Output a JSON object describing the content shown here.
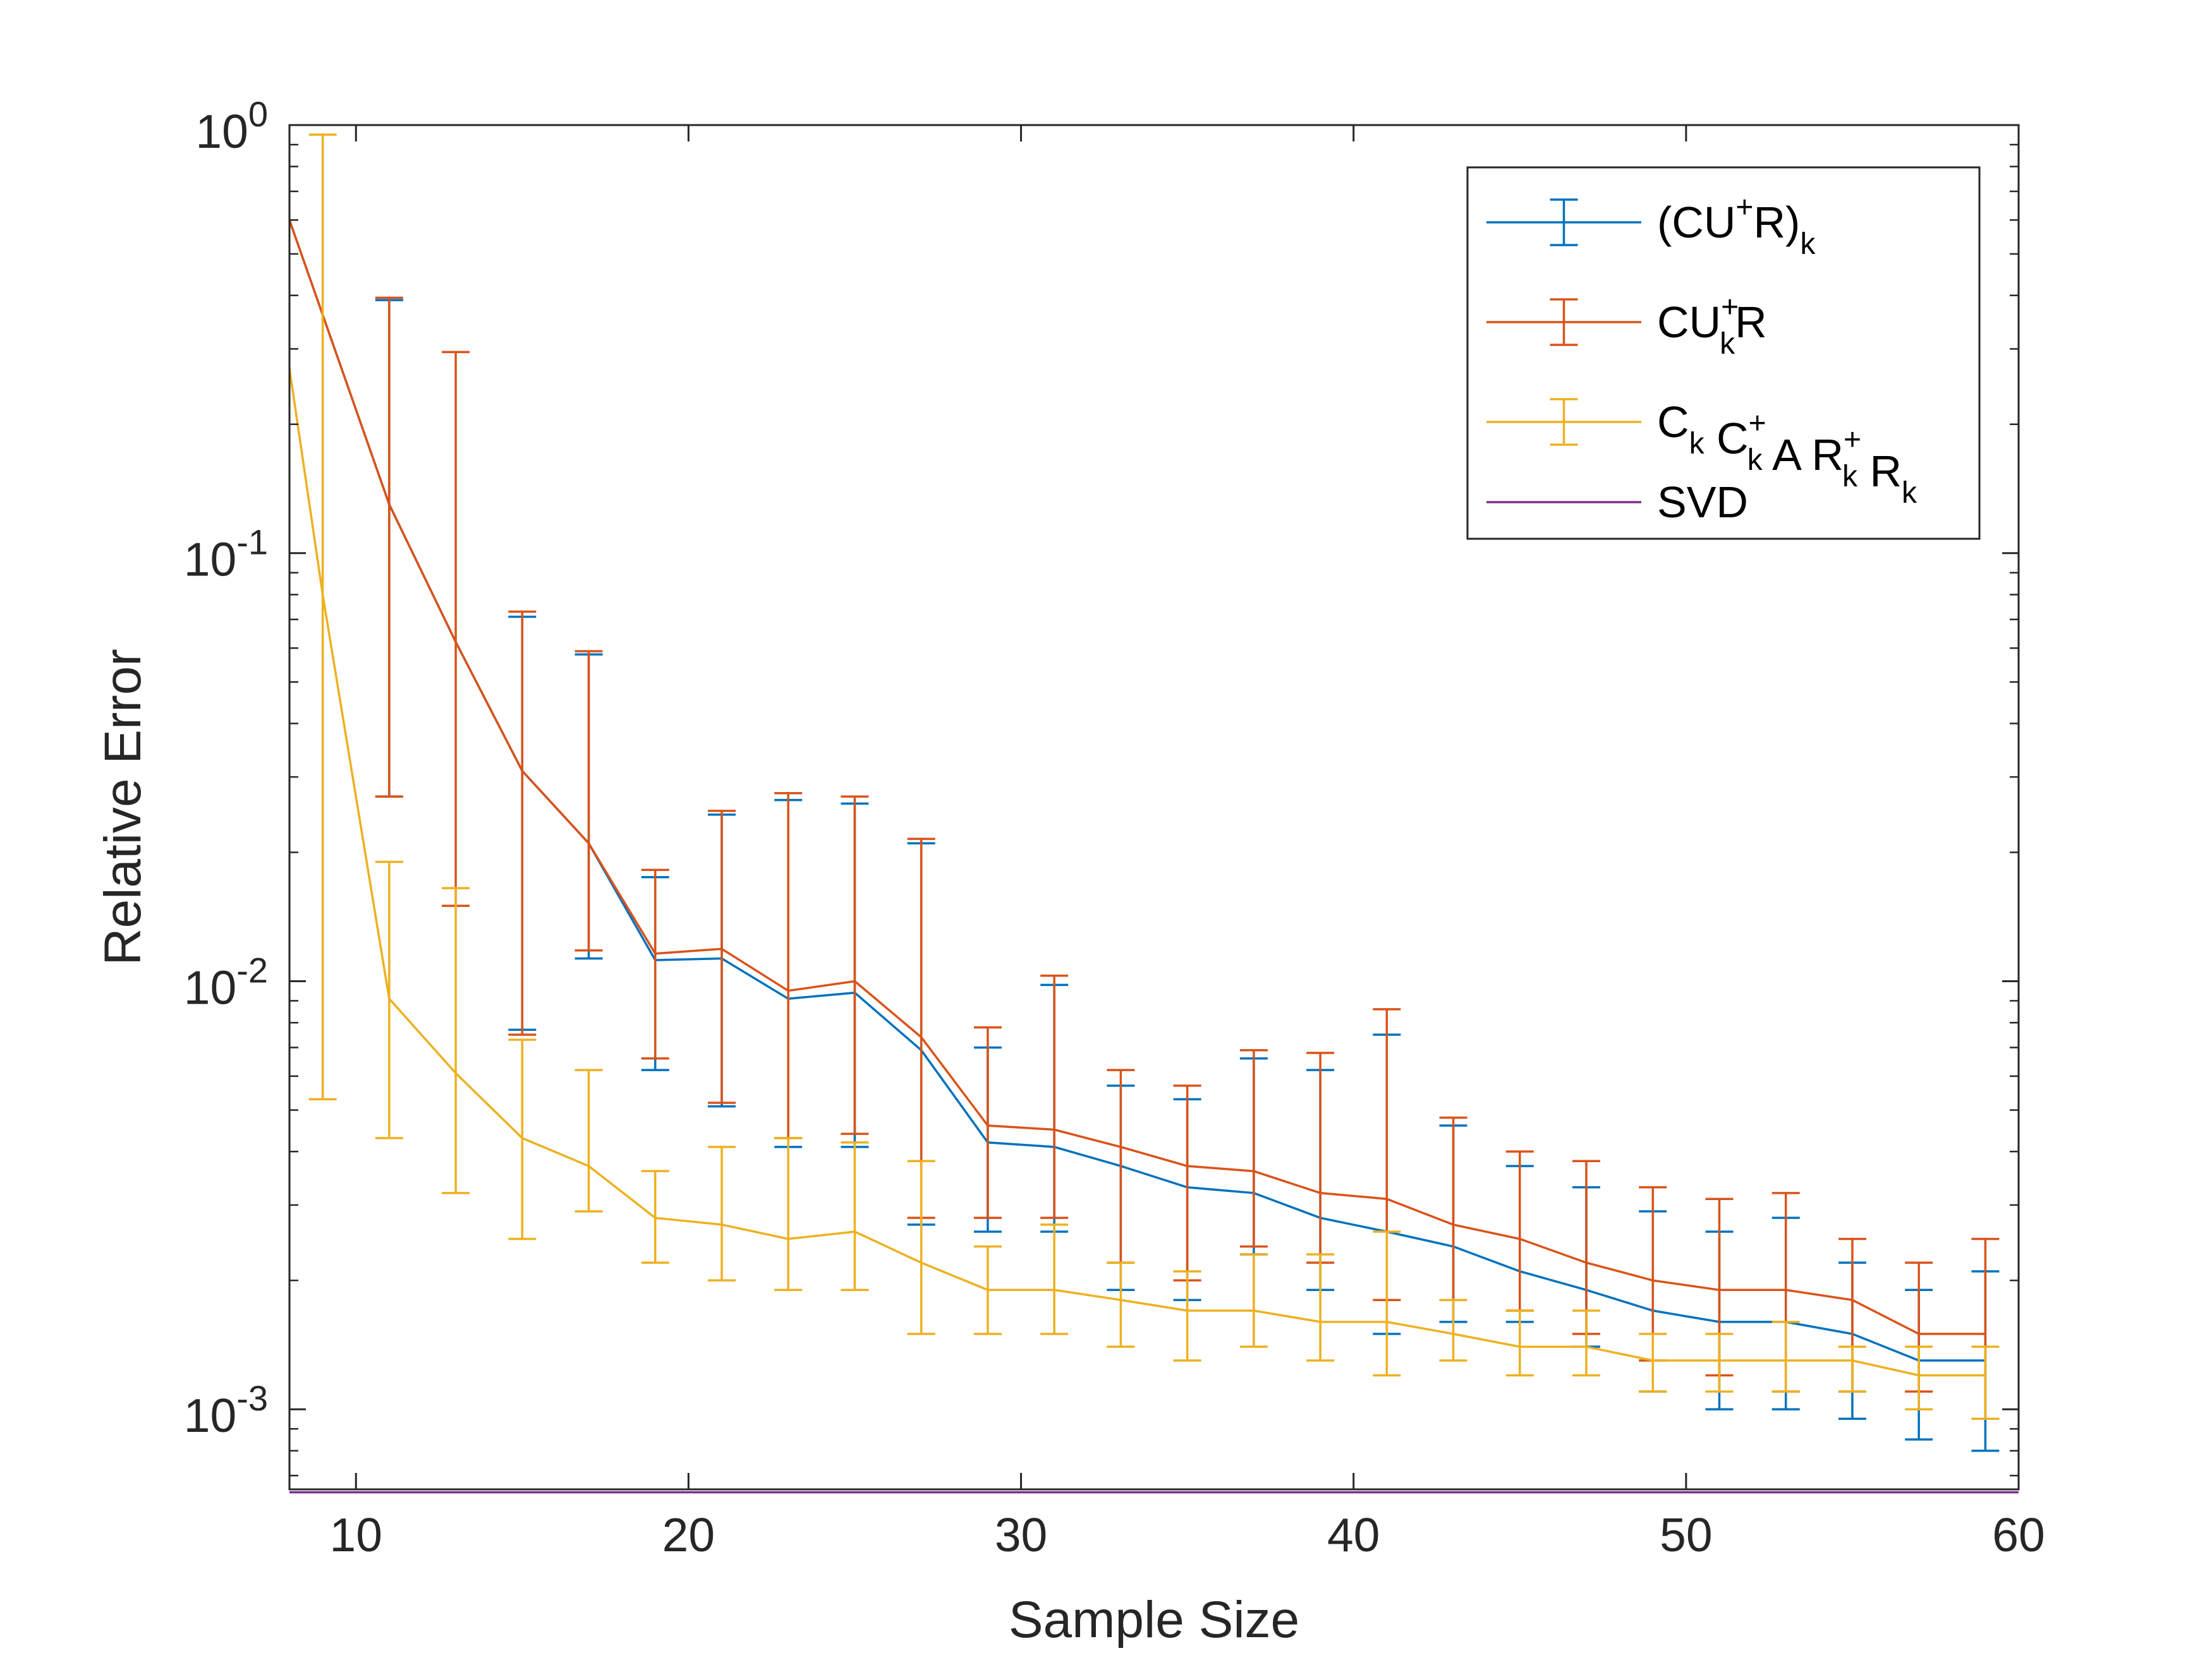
{
  "chart_data": {
    "type": "line",
    "subtype": "errorbar",
    "title": "",
    "xlabel": "Sample Size",
    "ylabel": "Relative Error",
    "xscale": "linear",
    "yscale": "log",
    "xlim": [
      8,
      60
    ],
    "ylim": [
      0.00065,
      1
    ],
    "xticks": [
      10,
      20,
      30,
      40,
      50,
      60
    ],
    "xtick_labels": [
      "10",
      "20",
      "30",
      "40",
      "50",
      "60"
    ],
    "yticks": [
      {
        "value": 1,
        "base": "10",
        "exp": "0"
      },
      {
        "value": 0.1,
        "base": "10",
        "exp": "-1"
      },
      {
        "value": 0.01,
        "base": "10",
        "exp": "-2"
      },
      {
        "value": 0.001,
        "base": "10",
        "exp": "-3"
      }
    ],
    "legend_position": "top-right",
    "series": [
      {
        "name": "(CU⁺R)ₖ",
        "legend": {
          "base": "(CU",
          "sup": "+",
          "mid": "R)",
          "sub": "k"
        },
        "color": "#0072BD",
        "errorbars": true,
        "x": [
          8,
          11,
          13,
          15,
          17,
          19,
          21,
          23,
          25,
          27,
          29,
          31,
          33,
          35,
          37,
          39,
          41,
          43,
          45,
          47,
          49,
          51,
          53,
          55,
          57,
          59
        ],
        "y": [
          0.6,
          0.13,
          0.062,
          0.031,
          0.021,
          0.0112,
          0.0113,
          0.0091,
          0.0094,
          0.0069,
          0.0042,
          0.0041,
          0.0037,
          0.0033,
          0.0032,
          0.0028,
          0.0026,
          0.0024,
          0.0021,
          0.0019,
          0.0017,
          0.0016,
          0.0016,
          0.0015,
          0.0013,
          0.0013
        ],
        "lower": [
          null,
          0.027,
          null,
          0.0077,
          0.0113,
          0.0062,
          0.0051,
          0.0041,
          0.0041,
          0.0027,
          0.0026,
          0.0026,
          0.0019,
          0.0018,
          0.0023,
          0.0019,
          0.0015,
          0.0016,
          0.0016,
          0.0014,
          0.0011,
          0.001,
          0.001,
          0.00095,
          0.00085,
          0.0008
        ],
        "upper": [
          null,
          0.39,
          0.285,
          0.071,
          0.058,
          0.0175,
          0.0245,
          0.0265,
          0.026,
          0.021,
          0.007,
          0.0098,
          0.0057,
          0.0053,
          0.0066,
          0.0062,
          0.0075,
          0.0046,
          0.0037,
          0.0033,
          0.0029,
          0.0026,
          0.0028,
          0.0022,
          0.0019,
          0.0021
        ]
      },
      {
        "name": "CUₖ⁺R",
        "legend": {
          "base": "CU",
          "sup": "+",
          "sub": "k",
          "mid": "R"
        },
        "color": "#D95319",
        "errorbars": true,
        "x": [
          8,
          11,
          13,
          15,
          17,
          19,
          21,
          23,
          25,
          27,
          29,
          31,
          33,
          35,
          37,
          39,
          41,
          43,
          45,
          47,
          49,
          51,
          53,
          55,
          57,
          59
        ],
        "y": [
          0.6,
          0.13,
          0.062,
          0.031,
          0.021,
          0.0116,
          0.0119,
          0.0095,
          0.01,
          0.0074,
          0.0046,
          0.0045,
          0.0041,
          0.0037,
          0.0036,
          0.0032,
          0.0031,
          0.0027,
          0.0025,
          0.0022,
          0.002,
          0.0019,
          0.0019,
          0.0018,
          0.0015,
          0.0015
        ],
        "lower": [
          null,
          0.027,
          0.015,
          0.0075,
          0.0118,
          0.0066,
          0.0052,
          0.0043,
          0.0044,
          0.0028,
          0.0028,
          0.0028,
          0.0022,
          0.002,
          0.0024,
          0.0022,
          0.0018,
          0.0018,
          0.0017,
          0.0015,
          0.0013,
          0.0012,
          0.0011,
          0.0011,
          0.0011,
          0.00095
        ],
        "upper": [
          null,
          0.395,
          0.295,
          0.073,
          0.059,
          0.0182,
          0.025,
          0.0275,
          0.027,
          0.0215,
          0.0078,
          0.0103,
          0.0062,
          0.0057,
          0.0069,
          0.0068,
          0.0086,
          0.0048,
          0.004,
          0.0038,
          0.0033,
          0.0031,
          0.0032,
          0.0025,
          0.0022,
          0.0025
        ]
      },
      {
        "name": "Cₖ Cₖ⁺ A Rₖ⁺ Rₖ",
        "legend": {
          "parts": [
            {
              "t": "C",
              "sub": "k"
            },
            {
              "t": " C",
              "sup": "+",
              "sub": "k"
            },
            {
              "t": " A R",
              "sup": "+",
              "sub": "k"
            },
            {
              "t": " R",
              "sub": "k"
            }
          ]
        },
        "color": "#EDB120",
        "errorbars": true,
        "x": [
          8,
          9,
          11,
          13,
          15,
          17,
          19,
          21,
          23,
          25,
          27,
          29,
          31,
          33,
          35,
          37,
          39,
          41,
          43,
          45,
          47,
          49,
          51,
          53,
          55,
          57,
          59
        ],
        "y": [
          0.27,
          0.08,
          0.0091,
          0.0061,
          0.0043,
          0.0037,
          0.0028,
          0.0027,
          0.0025,
          0.0026,
          0.0022,
          0.0019,
          0.0019,
          0.0018,
          0.0017,
          0.0017,
          0.0016,
          0.0016,
          0.0015,
          0.0014,
          0.0014,
          0.0013,
          0.0013,
          0.0013,
          0.0013,
          0.0012,
          0.0012
        ],
        "lower": [
          null,
          0.0053,
          0.0043,
          0.0032,
          0.0025,
          0.0029,
          0.0022,
          0.002,
          0.0019,
          0.0019,
          0.0015,
          0.0015,
          0.0015,
          0.0014,
          0.0013,
          0.0014,
          0.0013,
          0.0012,
          0.0013,
          0.0012,
          0.0012,
          0.0011,
          0.0011,
          0.0011,
          0.0011,
          0.001,
          0.00095
        ],
        "upper": [
          null,
          0.95,
          0.019,
          0.0165,
          0.0073,
          0.0062,
          0.0036,
          0.0041,
          0.0043,
          0.0042,
          0.0038,
          0.0024,
          0.0027,
          0.0022,
          0.0021,
          0.0023,
          0.0023,
          0.0026,
          0.0018,
          0.0017,
          0.0017,
          0.0015,
          0.0015,
          0.0016,
          0.0014,
          0.0014,
          0.0014
        ]
      },
      {
        "name": "SVD",
        "legend": {
          "base": "SVD"
        },
        "color": "#7E2F8E",
        "errorbars": false,
        "x": [
          8,
          60
        ],
        "y": [
          0.00064,
          0.00064
        ]
      }
    ]
  }
}
